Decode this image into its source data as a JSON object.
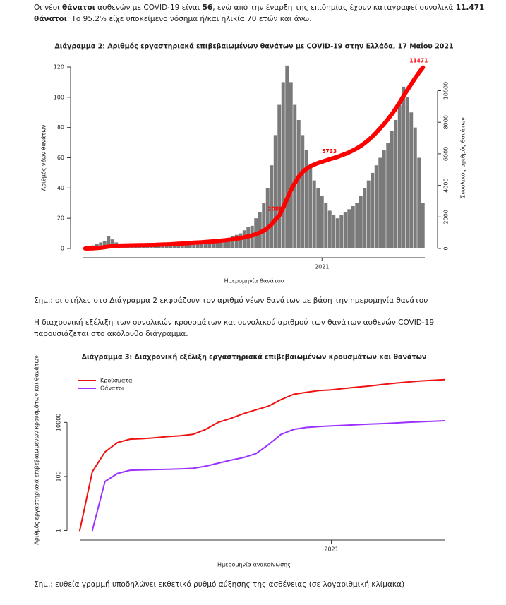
{
  "intro": [
    "Οι νέοι ",
    "θάνατοι",
    " ασθενών με COVID-19 είναι ",
    "56",
    ", ενώ από την έναρξη της επιδημίας έχουν καταγραφεί συνολικά ",
    "11.471 θάνατοι",
    ".  Το 95.2% είχε υποκείμενο νόσημα ή/και ηλικία 70 ετών και άνω."
  ],
  "note1": "Σημ.: οι στήλες στο Διάγραμμα 2 εκφράζουν τον αριθμό νέων θανάτων με βάση την ημερομηνία θανάτου",
  "paragraph": "Η διαχρονική εξέλιξη των συνολικών κρουσμάτων και συνολικού αριθμού των θανάτων ασθενών COVID-19 παρουσιάζεται στο ακόλουθο διάγραμμα.",
  "note2": "Σημ.: ευθεία γραμμή υποδηλώνει εκθετικό ρυθμό αύξησης της ασθένειας (σε λογαριθμική κλίμακα)",
  "chart_data": [
    {
      "type": "bar",
      "title": "Διάγραμμα 2: Αριθμός εργαστηριακά επιβεβαιωμένων θανάτων με COVID-19 στην Ελλάδα, 17 Μαΐου 2021",
      "x_label": "Ημερομηνία θανάτου",
      "y_label": "Αριθμός νέων θανάτων",
      "y2_label": "Συνολικός αριθμός θανάτων",
      "categories": [
        null,
        null,
        null,
        null,
        null,
        null,
        null,
        null,
        null,
        null,
        null,
        null,
        null,
        null,
        null,
        null,
        null,
        null,
        null,
        null,
        null,
        null,
        null,
        null,
        null,
        null,
        null,
        null,
        null,
        null,
        null,
        null,
        null,
        null,
        null,
        null,
        null,
        null,
        null,
        null,
        null,
        null,
        null,
        null,
        null,
        null,
        null,
        null,
        null,
        null,
        null,
        null,
        null,
        null,
        null,
        null,
        null,
        null,
        null,
        null,
        null,
        "2021",
        null,
        null,
        null,
        null,
        null,
        null,
        null,
        null,
        null,
        null,
        null,
        null,
        null,
        null,
        null,
        null,
        null,
        null,
        null,
        null,
        null,
        null,
        null,
        null,
        null,
        null
      ],
      "ylim": [
        0,
        120
      ],
      "yticks": [
        0,
        20,
        40,
        60,
        80,
        100,
        120
      ],
      "y2lim": [
        0,
        11500
      ],
      "y2ticks": [
        0,
        2000,
        4000,
        6000,
        8000,
        10000
      ],
      "series": [
        {
          "color": "#7a7a7a",
          "values": [
            0,
            1,
            2,
            3,
            4,
            5,
            8,
            6,
            4,
            3,
            2,
            2,
            1,
            1,
            1,
            1,
            1,
            1,
            2,
            2,
            2,
            2,
            3,
            3,
            3,
            4,
            4,
            4,
            3,
            3,
            3,
            4,
            4,
            5,
            5,
            6,
            6,
            7,
            8,
            9,
            10,
            12,
            14,
            15,
            20,
            24,
            30,
            40,
            55,
            75,
            95,
            110,
            121,
            110,
            95,
            85,
            75,
            65,
            55,
            45,
            40,
            35,
            30,
            25,
            22,
            20,
            22,
            24,
            26,
            28,
            30,
            35,
            40,
            45,
            50,
            55,
            60,
            65,
            70,
            78,
            85,
            95,
            107,
            100,
            90,
            80,
            60,
            30
          ]
        },
        {
          "type": "line",
          "axis": "y2",
          "color": "#ff0000",
          "values": [
            0,
            5,
            15,
            30,
            50,
            80,
            120,
            150,
            170,
            185,
            190,
            195,
            200,
            205,
            210,
            215,
            220,
            225,
            230,
            240,
            250,
            260,
            270,
            285,
            300,
            315,
            330,
            350,
            365,
            380,
            395,
            410,
            430,
            450,
            470,
            495,
            520,
            550,
            580,
            620,
            660,
            710,
            770,
            830,
            910,
            1010,
            1130,
            1300,
            1530,
            1840,
            2088,
            2600,
            3150,
            3700,
            4150,
            4550,
            4850,
            5050,
            5200,
            5320,
            5420,
            5500,
            5580,
            5660,
            5733,
            5810,
            5900,
            5990,
            6100,
            6220,
            6350,
            6500,
            6680,
            6880,
            7100,
            7350,
            7620,
            7900,
            8200,
            8520,
            8870,
            9250,
            9660,
            10050,
            10420,
            10800,
            11150,
            11471
          ],
          "value_labels": [
            null,
            null,
            null,
            null,
            null,
            null,
            null,
            null,
            null,
            null,
            null,
            null,
            null,
            null,
            null,
            null,
            null,
            null,
            null,
            null,
            null,
            null,
            null,
            null,
            null,
            null,
            null,
            null,
            null,
            null,
            null,
            null,
            null,
            null,
            null,
            null,
            null,
            null,
            null,
            null,
            null,
            null,
            null,
            null,
            null,
            null,
            null,
            null,
            null,
            null,
            "2088",
            null,
            null,
            null,
            null,
            null,
            null,
            null,
            null,
            null,
            null,
            null,
            null,
            null,
            "5733",
            null,
            null,
            null,
            null,
            null,
            null,
            null,
            null,
            null,
            null,
            null,
            null,
            null,
            null,
            null,
            null,
            null,
            null,
            null,
            null,
            null,
            null,
            "11471"
          ]
        }
      ]
    },
    {
      "type": "line",
      "title": "Διάγραμμα 3: Διαχρονική εξέλιξη εργαστηριακά επιβεβαιωμένων κρουσμάτων και θανάτων",
      "x_label": "Ημερομηνία ανακοίνωσης",
      "y_label": "Αριθμός εργαστηριακά επιβεβαιωμένων κρουσμάτων και θανάτων",
      "categories": [
        null,
        null,
        null,
        null,
        null,
        null,
        null,
        null,
        null,
        null,
        null,
        null,
        null,
        null,
        null,
        null,
        null,
        null,
        null,
        null,
        "2021",
        null,
        null,
        null,
        null,
        null,
        null,
        null,
        null,
        null
      ],
      "log_y": true,
      "ylim": [
        0.6,
        1500000
      ],
      "yticks": [
        1,
        100,
        10000
      ],
      "legend": "upper left",
      "series": [
        {
          "name": "Κρούσματα",
          "color": "#ee1111",
          "values": [
            1,
            150,
            800,
            1800,
            2400,
            2500,
            2700,
            3000,
            3200,
            3600,
            5500,
            10000,
            14000,
            21000,
            29000,
            40000,
            70000,
            110000,
            130000,
            150000,
            160000,
            180000,
            200000,
            220000,
            250000,
            280000,
            310000,
            340000,
            360000,
            380000
          ]
        },
        {
          "name": "Θάνατοι",
          "color": "#9b30ff",
          "values": [
            null,
            1,
            65,
            130,
            170,
            175,
            180,
            185,
            190,
            200,
            240,
            310,
            400,
            500,
            700,
            1500,
            3600,
            5500,
            6500,
            7000,
            7400,
            7800,
            8200,
            8600,
            9000,
            9500,
            10000,
            10500,
            11000,
            11471
          ]
        }
      ]
    }
  ]
}
